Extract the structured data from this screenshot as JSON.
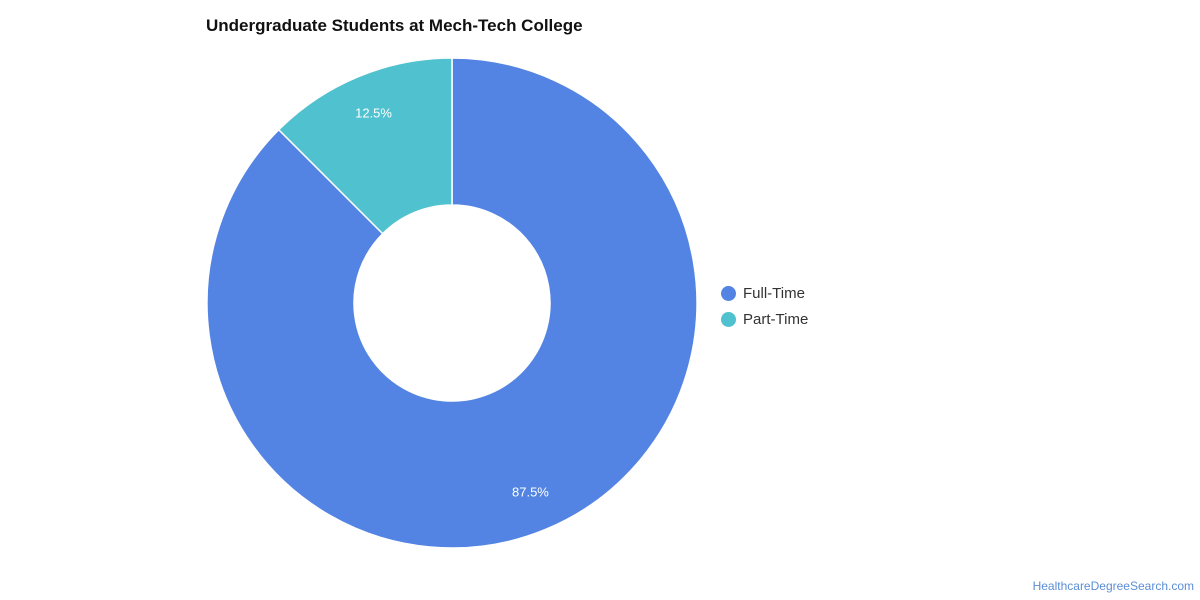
{
  "chart_data": {
    "type": "pie",
    "title": "Undergraduate Students at Mech-Tech College",
    "donut": true,
    "slices": [
      {
        "label": "Full-Time",
        "value": 87.5,
        "display": "87.5%",
        "color": "#5384e3"
      },
      {
        "label": "Part-Time",
        "value": 12.5,
        "display": "12.5%",
        "color": "#50c1ce"
      }
    ],
    "legend_position": "right"
  },
  "source": "HealthcareDegreeSearch.com"
}
